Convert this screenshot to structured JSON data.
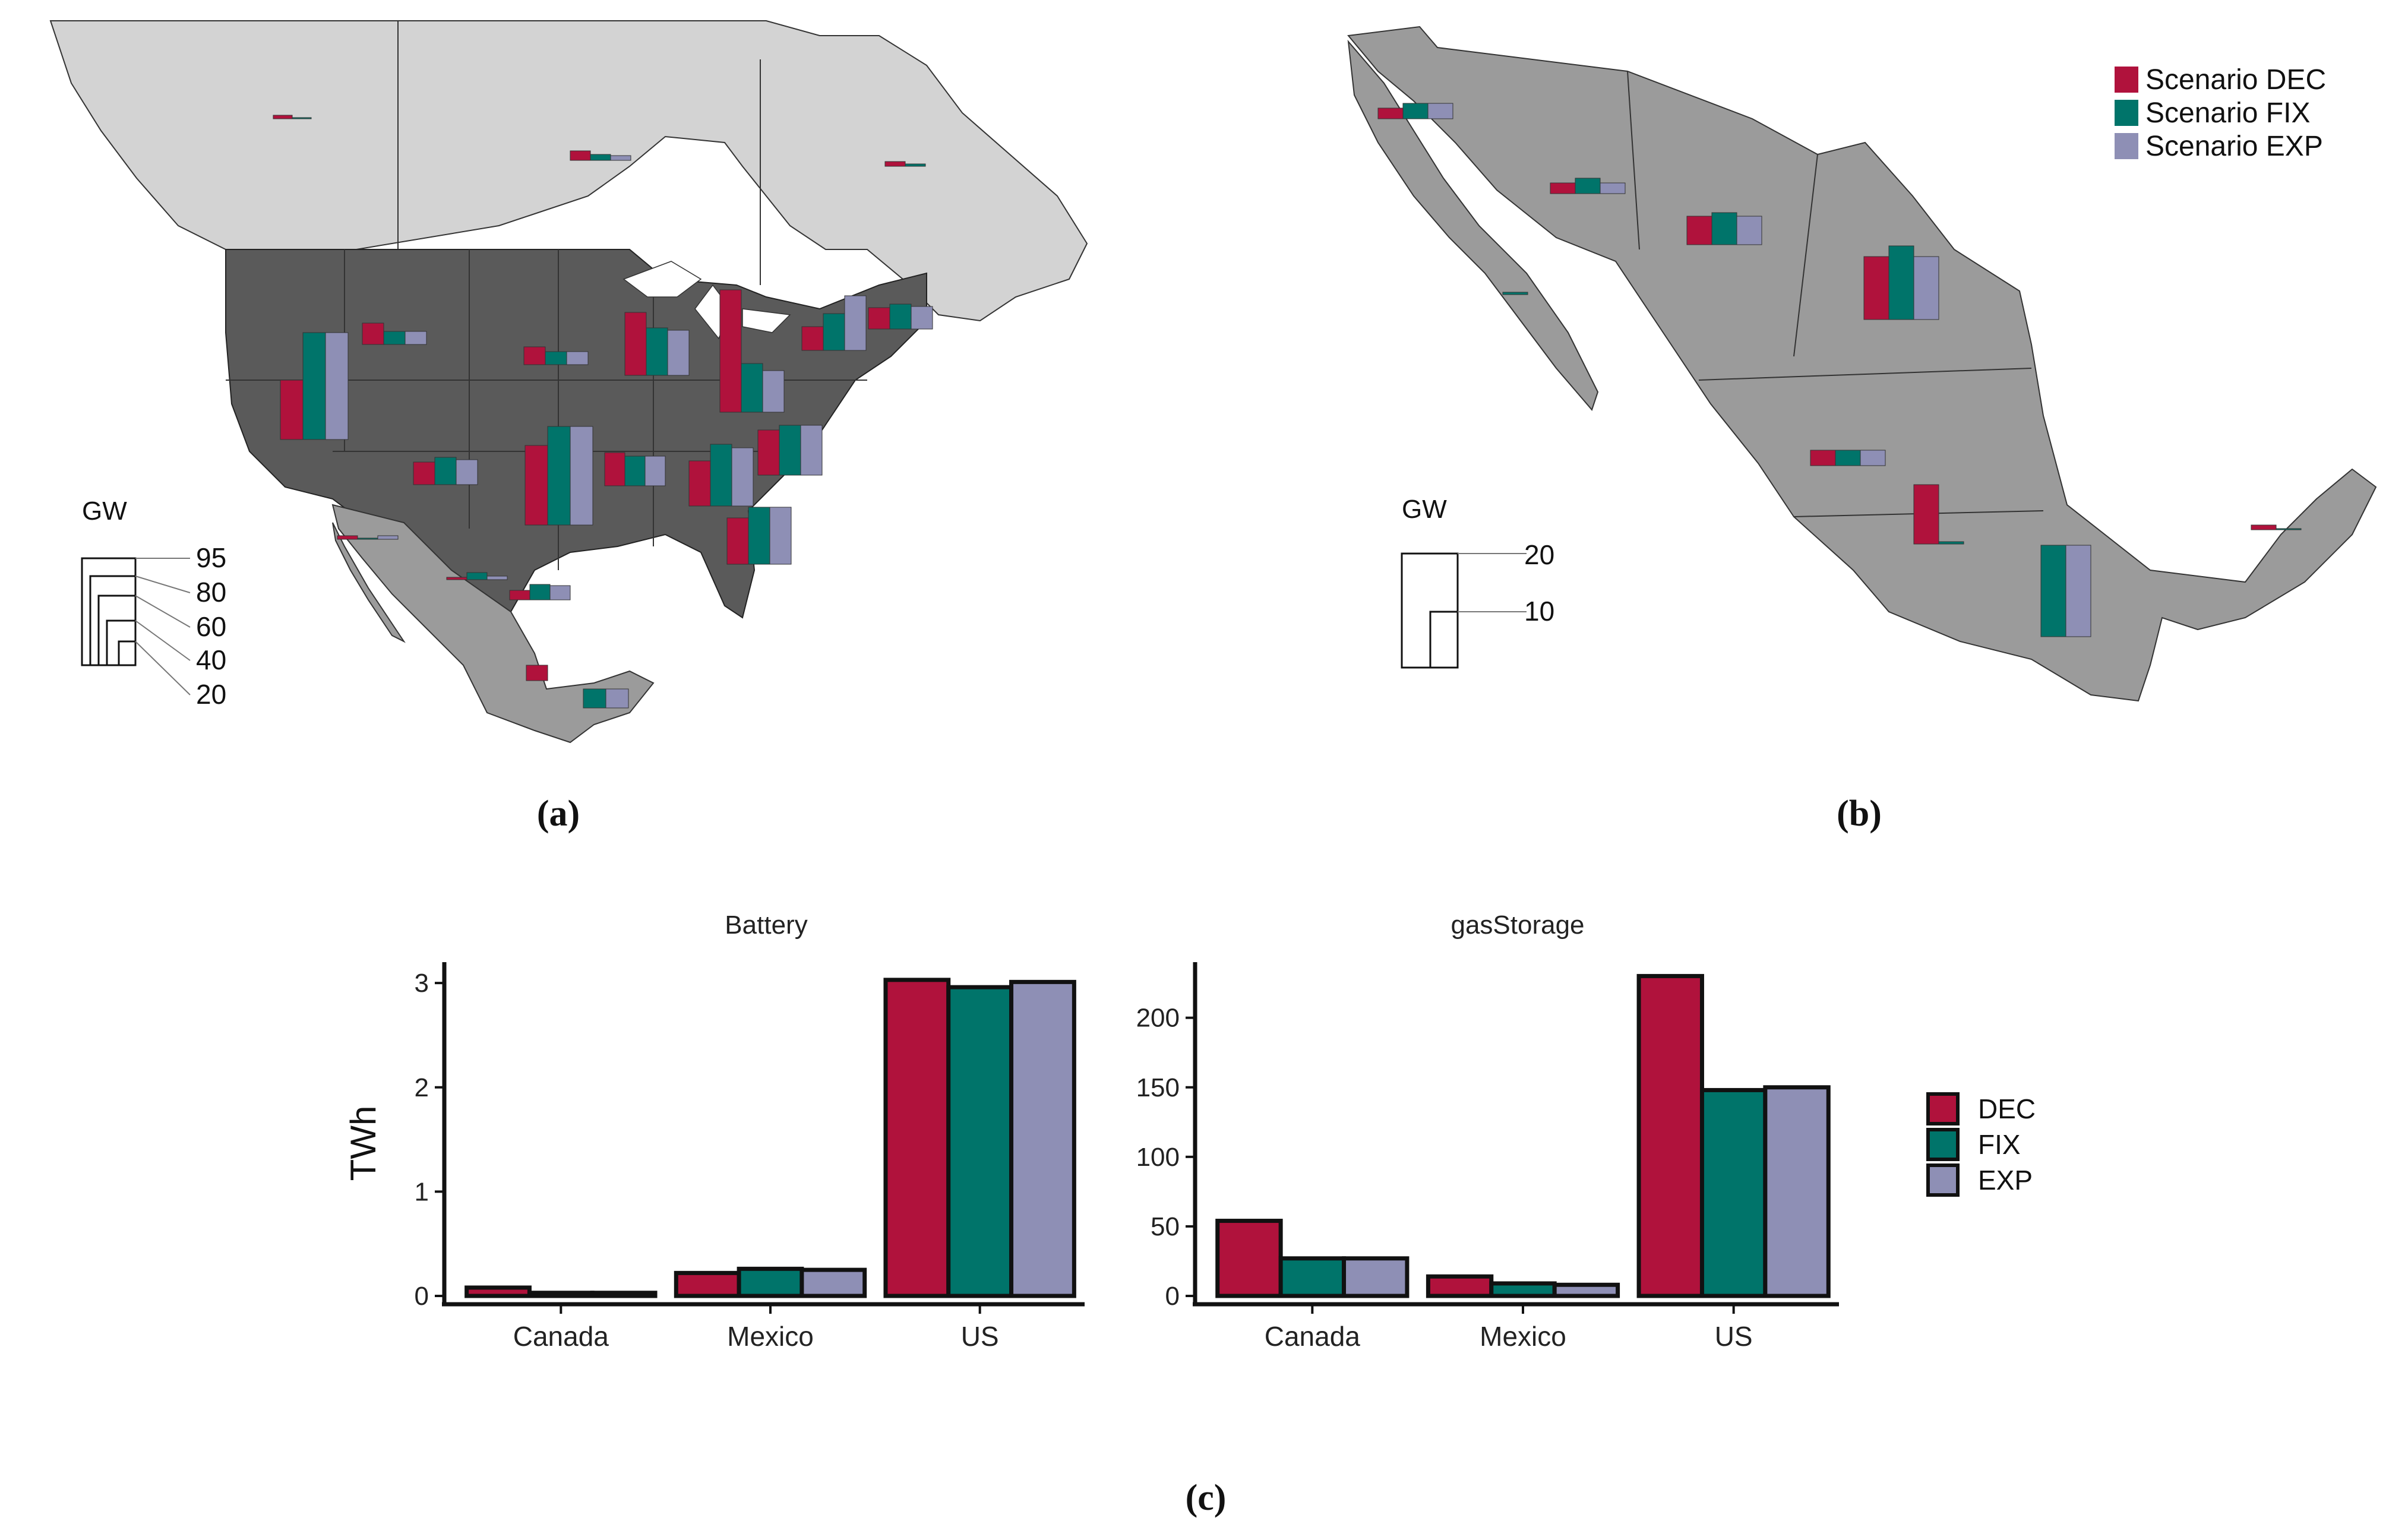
{
  "colors": {
    "dec": "#B0123C",
    "fix": "#00746A",
    "exp": "#8E8FB5",
    "us_land": "#5a5a5a",
    "mexico_land": "#9b9b9b",
    "canada_land": "#d3d3d3"
  },
  "panel_a": {
    "caption": "(a)",
    "legend_title": "GW",
    "scale_labels": [
      "95",
      "80",
      "60",
      "40",
      "20"
    ]
  },
  "panel_b": {
    "caption": "(b)",
    "legend_title": "GW",
    "scale_labels": [
      "20",
      "10"
    ],
    "legend": [
      "Scenario DEC",
      "Scenario FIX",
      "Scenario EXP"
    ]
  },
  "panel_c": {
    "caption": "(c)"
  },
  "chart_data": [
    {
      "type": "bar",
      "title": "Battery",
      "ylabel": "TWh",
      "xlabel": "",
      "ylim": [
        0,
        3.2
      ],
      "yticks": [
        "0",
        "1",
        "2",
        "3"
      ],
      "categories": [
        "Canada",
        "Mexico",
        "US"
      ],
      "series": [
        {
          "name": "DEC",
          "values": [
            0.08,
            0.22,
            3.03
          ]
        },
        {
          "name": "FIX",
          "values": [
            0.03,
            0.26,
            2.96
          ]
        },
        {
          "name": "EXP",
          "values": [
            0.03,
            0.25,
            3.01
          ]
        }
      ]
    },
    {
      "type": "bar",
      "title": "gasStorage",
      "ylabel": "",
      "xlabel": "",
      "ylim": [
        0,
        240
      ],
      "yticks": [
        "0",
        "50",
        "100",
        "150",
        "200"
      ],
      "categories": [
        "Canada",
        "Mexico",
        "US"
      ],
      "series": [
        {
          "name": "DEC",
          "values": [
            54,
            14,
            230
          ]
        },
        {
          "name": "FIX",
          "values": [
            27,
            9,
            148
          ]
        },
        {
          "name": "EXP",
          "values": [
            27,
            8,
            150
          ]
        }
      ],
      "legend": [
        "DEC",
        "FIX",
        "EXP"
      ]
    }
  ]
}
